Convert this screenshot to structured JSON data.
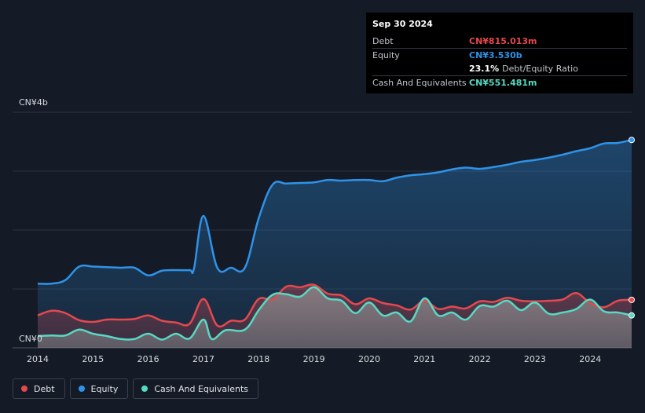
{
  "tooltip": {
    "date": "Sep 30 2024",
    "rows": [
      {
        "label": "Debt",
        "value": "CN¥815.013m",
        "color": "#e5484d"
      },
      {
        "label": "Equity",
        "value": "CN¥3.530b",
        "color": "#2e93e8"
      },
      {
        "label": "",
        "value": "23.1%",
        "extra": "Debt/Equity Ratio",
        "color": "#ffffff"
      },
      {
        "label": "Cash And Equivalents",
        "value": "CN¥551.481m",
        "color": "#57d9c3"
      }
    ]
  },
  "legend": [
    {
      "label": "Debt",
      "color": "#e5484d"
    },
    {
      "label": "Equity",
      "color": "#2e93e8"
    },
    {
      "label": "Cash And Equivalents",
      "color": "#57d9c3"
    }
  ],
  "chart_data": {
    "type": "area",
    "y_tick_labels": [
      "CN¥4b",
      "CN¥0"
    ],
    "ylim": [
      0,
      4.0
    ],
    "xlim": [
      2014.0,
      2024.75
    ],
    "x_tick_labels": [
      "2014",
      "2015",
      "2016",
      "2017",
      "2018",
      "2019",
      "2020",
      "2021",
      "2022",
      "2023",
      "2024"
    ],
    "grid": true,
    "legend_position": "bottom-left",
    "series": [
      {
        "name": "Equity",
        "color": "#2e93e8",
        "x": [
          2014.0,
          2014.25,
          2014.5,
          2014.75,
          2015.0,
          2015.25,
          2015.5,
          2015.75,
          2016.0,
          2016.25,
          2016.5,
          2016.75,
          2016.83,
          2017.0,
          2017.25,
          2017.5,
          2017.75,
          2018.0,
          2018.25,
          2018.5,
          2018.75,
          2019.0,
          2019.25,
          2019.5,
          2019.75,
          2020.0,
          2020.25,
          2020.5,
          2020.75,
          2021.0,
          2021.25,
          2021.5,
          2021.75,
          2022.0,
          2022.25,
          2022.5,
          2022.75,
          2023.0,
          2023.25,
          2023.5,
          2023.75,
          2024.0,
          2024.25,
          2024.5,
          2024.75
        ],
        "values": [
          1.09,
          1.09,
          1.15,
          1.38,
          1.38,
          1.37,
          1.36,
          1.36,
          1.23,
          1.31,
          1.32,
          1.32,
          1.35,
          2.24,
          1.36,
          1.36,
          1.36,
          2.2,
          2.77,
          2.79,
          2.8,
          2.81,
          2.85,
          2.84,
          2.85,
          2.85,
          2.83,
          2.89,
          2.93,
          2.95,
          2.98,
          3.03,
          3.06,
          3.04,
          3.07,
          3.11,
          3.16,
          3.19,
          3.23,
          3.28,
          3.34,
          3.39,
          3.47,
          3.48,
          3.53
        ]
      },
      {
        "name": "Debt",
        "color": "#e5484d",
        "x": [
          2014.0,
          2014.25,
          2014.5,
          2014.75,
          2015.0,
          2015.25,
          2015.5,
          2015.75,
          2016.0,
          2016.25,
          2016.5,
          2016.75,
          2017.0,
          2017.25,
          2017.5,
          2017.75,
          2018.0,
          2018.25,
          2018.5,
          2018.75,
          2019.0,
          2019.25,
          2019.5,
          2019.75,
          2020.0,
          2020.25,
          2020.5,
          2020.75,
          2021.0,
          2021.25,
          2021.5,
          2021.75,
          2022.0,
          2022.25,
          2022.5,
          2022.75,
          2023.0,
          2023.25,
          2023.5,
          2023.75,
          2024.0,
          2024.25,
          2024.5,
          2024.75
        ],
        "values": [
          0.55,
          0.63,
          0.59,
          0.47,
          0.44,
          0.48,
          0.48,
          0.49,
          0.55,
          0.46,
          0.43,
          0.41,
          0.83,
          0.38,
          0.46,
          0.48,
          0.83,
          0.82,
          1.04,
          1.03,
          1.07,
          0.92,
          0.89,
          0.74,
          0.84,
          0.76,
          0.72,
          0.65,
          0.8,
          0.66,
          0.7,
          0.67,
          0.79,
          0.78,
          0.85,
          0.8,
          0.79,
          0.8,
          0.82,
          0.93,
          0.76,
          0.69,
          0.8,
          0.815
        ]
      },
      {
        "name": "Cash And Equivalents",
        "color": "#57d9c3",
        "x": [
          2014.0,
          2014.25,
          2014.5,
          2014.75,
          2015.0,
          2015.25,
          2015.5,
          2015.75,
          2016.0,
          2016.25,
          2016.5,
          2016.75,
          2017.0,
          2017.15,
          2017.4,
          2017.75,
          2018.0,
          2018.25,
          2018.5,
          2018.75,
          2019.0,
          2019.25,
          2019.5,
          2019.75,
          2020.0,
          2020.25,
          2020.5,
          2020.75,
          2021.0,
          2021.25,
          2021.5,
          2021.75,
          2022.0,
          2022.25,
          2022.5,
          2022.75,
          2023.0,
          2023.25,
          2023.5,
          2023.75,
          2024.0,
          2024.25,
          2024.5,
          2024.75
        ],
        "values": [
          0.2,
          0.21,
          0.21,
          0.31,
          0.24,
          0.2,
          0.15,
          0.15,
          0.24,
          0.14,
          0.24,
          0.16,
          0.48,
          0.15,
          0.3,
          0.31,
          0.64,
          0.9,
          0.91,
          0.87,
          1.03,
          0.84,
          0.8,
          0.59,
          0.77,
          0.55,
          0.6,
          0.45,
          0.84,
          0.55,
          0.6,
          0.48,
          0.71,
          0.7,
          0.8,
          0.64,
          0.77,
          0.58,
          0.6,
          0.66,
          0.82,
          0.62,
          0.6,
          0.551
        ]
      }
    ]
  }
}
